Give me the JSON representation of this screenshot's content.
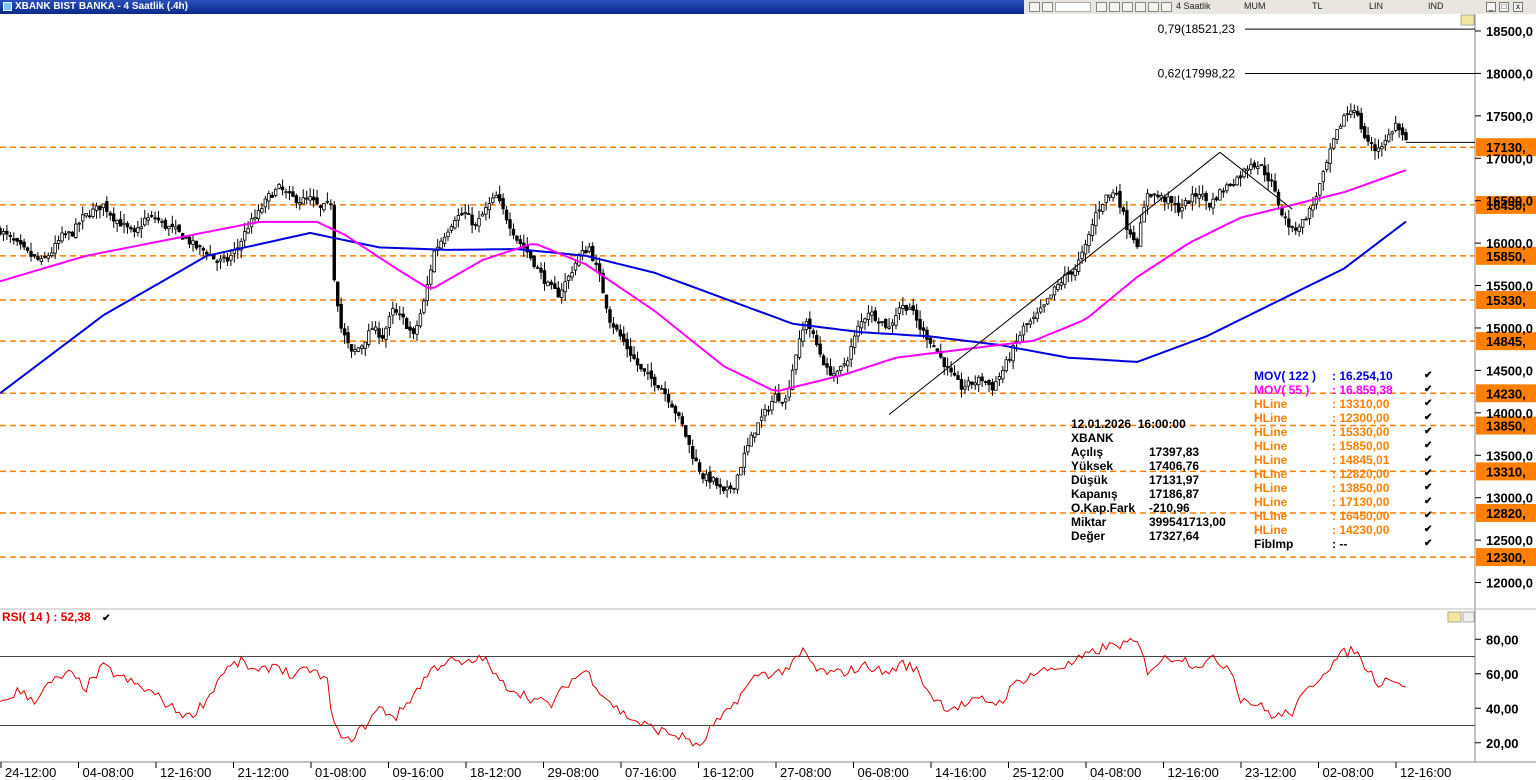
{
  "window": {
    "title": "XBANK BIST BANKA - 4 Saatlik (.4h)",
    "period_select": "4 Saatlik",
    "toolbar_labels": [
      "MUM",
      "TL",
      "LIN",
      "IND"
    ],
    "close_glyph": "x"
  },
  "chart_data": {
    "type": "candlestick",
    "symbol": "XBANK",
    "y_axis": {
      "range": [
        11700,
        18700
      ],
      "ticks": [
        "12000,0",
        "12500,0",
        "13000,0",
        "13500,0",
        "14000,0",
        "14500,0",
        "15000,0",
        "15500,0",
        "16000,0",
        "16500,0",
        "17000,0",
        "17500,0",
        "18000,0",
        "18500,0"
      ],
      "tick_values": [
        12000,
        12500,
        13000,
        13500,
        14000,
        14500,
        15000,
        15500,
        16000,
        16500,
        17000,
        17500,
        18000,
        18500
      ]
    },
    "x_axis": {
      "tick_labels": [
        "24-12:00",
        "04-08:00",
        "12-16:00",
        "21-12:00",
        "01-08:00",
        "09-16:00",
        "18-12:00",
        "29-08:00",
        "07-16:00",
        "16-12:00",
        "27-08:00",
        "06-08:00",
        "14-16:00",
        "25-12:00",
        "04-08:00",
        "12-16:00",
        "23-12:00",
        "02-08:00",
        "12-16:00"
      ]
    },
    "hlines": [
      {
        "value": 17130,
        "label": "17130,"
      },
      {
        "value": 16450,
        "label": "16450,"
      },
      {
        "value": 15850,
        "label": "15850,"
      },
      {
        "value": 15330,
        "label": "15330,"
      },
      {
        "value": 14845,
        "label": "14845,"
      },
      {
        "value": 14230,
        "label": "14230,"
      },
      {
        "value": 13850,
        "label": "13850,"
      },
      {
        "value": 13310,
        "label": "13310,"
      },
      {
        "value": 12820,
        "label": "12820,"
      },
      {
        "value": 12300,
        "label": "12300,"
      }
    ],
    "fibonacci": [
      {
        "value": 18521.23,
        "label": "0,79(18521,23"
      },
      {
        "value": 17998.22,
        "label": "0,62(17998,22"
      }
    ],
    "last_price": 17186.87,
    "close_path": [
      [
        0,
        16150
      ],
      [
        3,
        16050
      ],
      [
        6,
        15950
      ],
      [
        9,
        15850
      ],
      [
        12,
        15780
      ],
      [
        15,
        15900
      ],
      [
        18,
        16080
      ],
      [
        21,
        16120
      ],
      [
        24,
        16300
      ],
      [
        27,
        16380
      ],
      [
        30,
        16450
      ],
      [
        33,
        16300
      ],
      [
        36,
        16200
      ],
      [
        39,
        16100
      ],
      [
        42,
        16280
      ],
      [
        45,
        16300
      ],
      [
        48,
        16200
      ],
      [
        51,
        16150
      ],
      [
        54,
        16050
      ],
      [
        57,
        15950
      ],
      [
        60,
        15900
      ],
      [
        63,
        15780
      ],
      [
        66,
        15800
      ],
      [
        69,
        15950
      ],
      [
        72,
        16200
      ],
      [
        75,
        16350
      ],
      [
        78,
        16550
      ],
      [
        81,
        16650
      ],
      [
        84,
        16550
      ],
      [
        87,
        16500
      ],
      [
        90,
        16520
      ],
      [
        93,
        16400
      ],
      [
        96,
        16480
      ],
      [
        97,
        15600
      ],
      [
        99,
        15000
      ],
      [
        102,
        14700
      ],
      [
        105,
        14800
      ],
      [
        108,
        15000
      ],
      [
        111,
        14900
      ],
      [
        114,
        15200
      ],
      [
        117,
        15100
      ],
      [
        120,
        14900
      ],
      [
        123,
        15300
      ],
      [
        126,
        15900
      ],
      [
        129,
        16100
      ],
      [
        132,
        16300
      ],
      [
        135,
        16350
      ],
      [
        138,
        16200
      ],
      [
        141,
        16400
      ],
      [
        144,
        16550
      ],
      [
        147,
        16300
      ],
      [
        150,
        16050
      ],
      [
        153,
        15900
      ],
      [
        156,
        15700
      ],
      [
        159,
        15500
      ],
      [
        162,
        15400
      ],
      [
        165,
        15600
      ],
      [
        168,
        15850
      ],
      [
        171,
        15950
      ],
      [
        174,
        15600
      ],
      [
        177,
        15100
      ],
      [
        180,
        14900
      ],
      [
        183,
        14700
      ],
      [
        186,
        14500
      ],
      [
        189,
        14400
      ],
      [
        192,
        14300
      ],
      [
        195,
        14100
      ],
      [
        198,
        13850
      ],
      [
        201,
        13500
      ],
      [
        204,
        13250
      ],
      [
        207,
        13200
      ],
      [
        210,
        13050
      ],
      [
        213,
        13150
      ],
      [
        216,
        13500
      ],
      [
        219,
        13800
      ],
      [
        222,
        14000
      ],
      [
        225,
        14200
      ],
      [
        228,
        14150
      ],
      [
        231,
        14700
      ],
      [
        234,
        15100
      ],
      [
        237,
        14800
      ],
      [
        240,
        14500
      ],
      [
        243,
        14450
      ],
      [
        246,
        14650
      ],
      [
        249,
        15000
      ],
      [
        252,
        15200
      ],
      [
        255,
        15100
      ],
      [
        258,
        15000
      ],
      [
        261,
        15250
      ],
      [
        264,
        15250
      ],
      [
        267,
        15000
      ],
      [
        270,
        14850
      ],
      [
        273,
        14650
      ],
      [
        276,
        14450
      ],
      [
        279,
        14300
      ],
      [
        282,
        14350
      ],
      [
        285,
        14400
      ],
      [
        288,
        14300
      ],
      [
        291,
        14500
      ],
      [
        294,
        14750
      ],
      [
        297,
        15000
      ],
      [
        300,
        15100
      ],
      [
        303,
        15250
      ],
      [
        306,
        15450
      ],
      [
        309,
        15600
      ],
      [
        312,
        15700
      ],
      [
        315,
        15950
      ],
      [
        318,
        16350
      ],
      [
        321,
        16550
      ],
      [
        324,
        16600
      ],
      [
        327,
        16200
      ],
      [
        330,
        16000
      ],
      [
        333,
        16600
      ],
      [
        336,
        16550
      ],
      [
        339,
        16500
      ],
      [
        342,
        16400
      ],
      [
        345,
        16500
      ],
      [
        348,
        16600
      ],
      [
        351,
        16450
      ],
      [
        354,
        16600
      ],
      [
        357,
        16700
      ],
      [
        360,
        16800
      ],
      [
        363,
        16950
      ],
      [
        366,
        16900
      ],
      [
        369,
        16700
      ],
      [
        372,
        16350
      ],
      [
        375,
        16150
      ],
      [
        378,
        16250
      ],
      [
        381,
        16450
      ],
      [
        384,
        16800
      ],
      [
        387,
        17200
      ],
      [
        390,
        17500
      ],
      [
        393,
        17600
      ],
      [
        396,
        17250
      ],
      [
        399,
        17100
      ],
      [
        402,
        17200
      ],
      [
        405,
        17400
      ],
      [
        408,
        17186.87
      ]
    ],
    "mov_122_path": [
      [
        0,
        14230
      ],
      [
        30,
        15150
      ],
      [
        60,
        15850
      ],
      [
        90,
        16120
      ],
      [
        110,
        15950
      ],
      [
        130,
        15920
      ],
      [
        150,
        15930
      ],
      [
        170,
        15850
      ],
      [
        190,
        15650
      ],
      [
        210,
        15350
      ],
      [
        230,
        15050
      ],
      [
        250,
        14950
      ],
      [
        270,
        14900
      ],
      [
        290,
        14800
      ],
      [
        310,
        14650
      ],
      [
        330,
        14600
      ],
      [
        350,
        14900
      ],
      [
        370,
        15300
      ],
      [
        390,
        15700
      ],
      [
        408,
        16254.1
      ]
    ],
    "mov_55_path": [
      [
        0,
        15550
      ],
      [
        25,
        15850
      ],
      [
        50,
        16050
      ],
      [
        75,
        16250
      ],
      [
        92,
        16250
      ],
      [
        100,
        16100
      ],
      [
        115,
        15700
      ],
      [
        125,
        15450
      ],
      [
        140,
        15800
      ],
      [
        155,
        16000
      ],
      [
        170,
        15750
      ],
      [
        190,
        15200
      ],
      [
        210,
        14550
      ],
      [
        225,
        14250
      ],
      [
        245,
        14450
      ],
      [
        260,
        14650
      ],
      [
        280,
        14750
      ],
      [
        300,
        14850
      ],
      [
        315,
        15100
      ],
      [
        330,
        15600
      ],
      [
        345,
        16000
      ],
      [
        360,
        16300
      ],
      [
        375,
        16450
      ],
      [
        390,
        16600
      ],
      [
        408,
        16859.38
      ]
    ],
    "trend_line": [
      [
        258,
        13980
      ],
      [
        354,
        17070
      ]
    ],
    "trend_line_2": [
      [
        354,
        17070
      ],
      [
        375,
        16400
      ]
    ],
    "rsi": {
      "period": 14,
      "value": 52.38,
      "label": "RSI( 14 )",
      "value_label": ": 52,38",
      "levels": [
        30,
        70
      ],
      "range": [
        10,
        90
      ],
      "ticks": [
        "20,00",
        "40,00",
        "60,00",
        "80,00"
      ],
      "tick_values": [
        20,
        40,
        60,
        80
      ],
      "path": [
        [
          0,
          42
        ],
        [
          5,
          50
        ],
        [
          10,
          45
        ],
        [
          15,
          55
        ],
        [
          20,
          60
        ],
        [
          25,
          52
        ],
        [
          30,
          64
        ],
        [
          35,
          58
        ],
        [
          40,
          53
        ],
        [
          45,
          48
        ],
        [
          50,
          40
        ],
        [
          55,
          35
        ],
        [
          60,
          45
        ],
        [
          65,
          62
        ],
        [
          70,
          67
        ],
        [
          75,
          60
        ],
        [
          80,
          66
        ],
        [
          85,
          58
        ],
        [
          90,
          63
        ],
        [
          95,
          55
        ],
        [
          97,
          30
        ],
        [
          100,
          20
        ],
        [
          105,
          28
        ],
        [
          110,
          40
        ],
        [
          115,
          35
        ],
        [
          120,
          48
        ],
        [
          125,
          62
        ],
        [
          130,
          68
        ],
        [
          135,
          65
        ],
        [
          140,
          70
        ],
        [
          145,
          55
        ],
        [
          150,
          50
        ],
        [
          155,
          45
        ],
        [
          160,
          42
        ],
        [
          165,
          55
        ],
        [
          170,
          62
        ],
        [
          175,
          48
        ],
        [
          180,
          38
        ],
        [
          185,
          32
        ],
        [
          190,
          28
        ],
        [
          195,
          25
        ],
        [
          200,
          22
        ],
        [
          203,
          16
        ],
        [
          206,
          28
        ],
        [
          210,
          35
        ],
        [
          215,
          48
        ],
        [
          220,
          60
        ],
        [
          225,
          60
        ],
        [
          230,
          65
        ],
        [
          233,
          73
        ],
        [
          237,
          62
        ],
        [
          242,
          60
        ],
        [
          247,
          62
        ],
        [
          252,
          65
        ],
        [
          257,
          60
        ],
        [
          262,
          66
        ],
        [
          266,
          62
        ],
        [
          270,
          48
        ],
        [
          275,
          40
        ],
        [
          280,
          42
        ],
        [
          285,
          45
        ],
        [
          290,
          43
        ],
        [
          295,
          55
        ],
        [
          300,
          60
        ],
        [
          305,
          63
        ],
        [
          310,
          65
        ],
        [
          315,
          70
        ],
        [
          320,
          75
        ],
        [
          325,
          77
        ],
        [
          330,
          78
        ],
        [
          333,
          62
        ],
        [
          337,
          68
        ],
        [
          342,
          70
        ],
        [
          347,
          65
        ],
        [
          352,
          68
        ],
        [
          357,
          64
        ],
        [
          360,
          46
        ],
        [
          365,
          42
        ],
        [
          370,
          35
        ],
        [
          375,
          38
        ],
        [
          380,
          52
        ],
        [
          385,
          63
        ],
        [
          390,
          72
        ],
        [
          393,
          74
        ],
        [
          397,
          62
        ],
        [
          400,
          55
        ],
        [
          404,
          58
        ],
        [
          408,
          52.38
        ]
      ]
    }
  },
  "info_panel": {
    "date": "12.01.2026",
    "time": "16:00:00",
    "symbol": "XBANK",
    "rows": [
      {
        "label": "Açılış",
        "value": "17397,83"
      },
      {
        "label": "Yüksek",
        "value": "17406,76"
      },
      {
        "label": "Düşük",
        "value": "17131,97"
      },
      {
        "label": "Kapanış",
        "value": "17186,87"
      },
      {
        "label": "O.Kap.Fark",
        "value": "-210,96"
      },
      {
        "label": "Miktar",
        "value": "399541713,00"
      },
      {
        "label": "Değer",
        "value": "17327,64"
      }
    ]
  },
  "legend": {
    "items": [
      {
        "label": "MOV( 122 )",
        "value": ": 16.254,10",
        "color": "#0000dd"
      },
      {
        "label": "MOV( 55 )",
        "value": ": 16.859,38",
        "color": "#ff00ff"
      },
      {
        "label": "HLine",
        "value": ": 13310,00",
        "color": "#ff8000"
      },
      {
        "label": "HLine",
        "value": ": 12300,00",
        "color": "#ff8000"
      },
      {
        "label": "HLine",
        "value": ": 15330,00",
        "color": "#ff8000"
      },
      {
        "label": "HLine",
        "value": ": 15850,00",
        "color": "#ff8000"
      },
      {
        "label": "HLine",
        "value": ": 14845,01",
        "color": "#ff8000"
      },
      {
        "label": "HLine",
        "value": ": 12820,00",
        "color": "#ff8000"
      },
      {
        "label": "HLine",
        "value": ": 13850,00",
        "color": "#ff8000"
      },
      {
        "label": "HLine",
        "value": ": 17130,00",
        "color": "#ff8000"
      },
      {
        "label": "HLine",
        "value": ": 16450,00",
        "color": "#ff8000"
      },
      {
        "label": "HLine",
        "value": ": 14230,00",
        "color": "#ff8000"
      },
      {
        "label": "FibImp",
        "value": ": --",
        "color": "#000000"
      }
    ],
    "check_glyph": "✔"
  },
  "colors": {
    "hline": "#ff8000",
    "mov122": "#0000dd",
    "mov55": "#ff00ff",
    "rsi": "#e00000",
    "candle": "#000000"
  }
}
